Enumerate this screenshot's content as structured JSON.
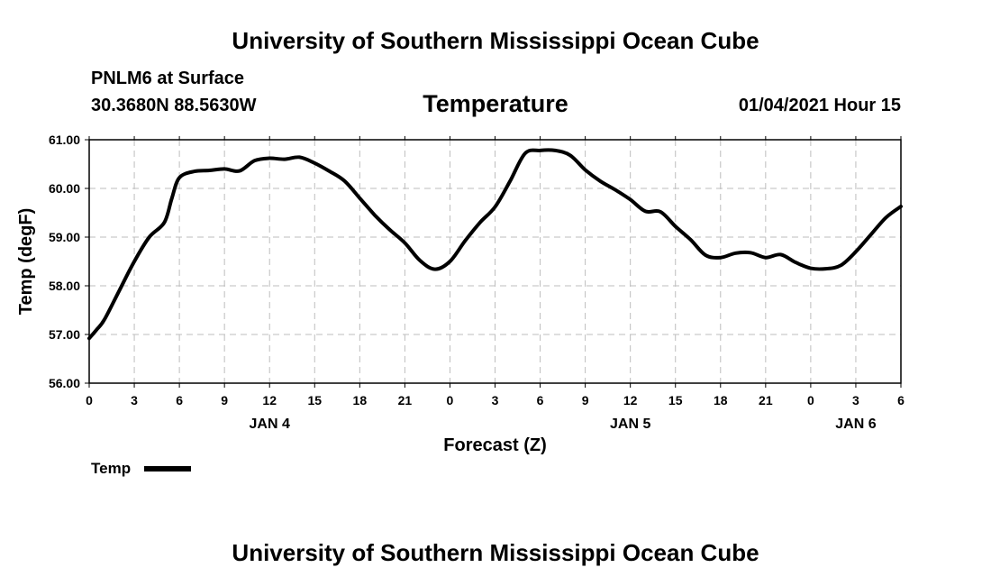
{
  "header": {
    "main_title": "University of Southern Mississippi Ocean Cube",
    "station": "PNLM6 at Surface",
    "coords": "30.3680N 88.5630W",
    "timestamp": "01/04/2021 Hour 15"
  },
  "footer": {
    "title": "University of Southern Mississippi Ocean Cube"
  },
  "chart_data": {
    "type": "line",
    "title": "Temperature",
    "xlabel": "Forecast (Z)",
    "ylabel": "Temp (degF)",
    "ylim": [
      56,
      61
    ],
    "xlim_hours": [
      0,
      54
    ],
    "grid": true,
    "y_ticks": [
      "56.00",
      "57.00",
      "58.00",
      "59.00",
      "60.00",
      "61.00"
    ],
    "y_tick_values": [
      56,
      57,
      58,
      59,
      60,
      61
    ],
    "x_ticks": [
      "0",
      "3",
      "6",
      "9",
      "12",
      "15",
      "18",
      "21",
      "0",
      "3",
      "6",
      "9",
      "12",
      "15",
      "18",
      "21",
      "0",
      "3",
      "6"
    ],
    "day_labels": [
      {
        "label": "JAN 4",
        "hour": 12
      },
      {
        "label": "JAN 5",
        "hour": 36
      },
      {
        "label": "JAN 6",
        "hour": 51
      }
    ],
    "legend": {
      "position": "bottom-left",
      "entries": [
        "Temp"
      ]
    },
    "series": [
      {
        "name": "Temp",
        "color": "#000000",
        "x": [
          0,
          0.5,
          1,
          2,
          3,
          4,
          5,
          5.5,
          6,
          7,
          8,
          9,
          10,
          11,
          12,
          13,
          14,
          15,
          16,
          17,
          18,
          19,
          20,
          21,
          22,
          23,
          24,
          25,
          26,
          27,
          28,
          29,
          30,
          31,
          32,
          33,
          34,
          35,
          36,
          37,
          38,
          39,
          40,
          41,
          42,
          43,
          44,
          45,
          46,
          47,
          48,
          49,
          50,
          51,
          52,
          53,
          54
        ],
        "y": [
          56.92,
          57.1,
          57.3,
          57.9,
          58.5,
          59.0,
          59.3,
          59.8,
          60.22,
          60.35,
          60.37,
          60.4,
          60.36,
          60.57,
          60.62,
          60.6,
          60.64,
          60.52,
          60.35,
          60.15,
          59.8,
          59.45,
          59.15,
          58.88,
          58.52,
          58.34,
          58.5,
          58.92,
          59.3,
          59.62,
          60.15,
          60.72,
          60.78,
          60.78,
          60.68,
          60.38,
          60.15,
          59.97,
          59.77,
          59.53,
          59.52,
          59.22,
          58.95,
          58.63,
          58.58,
          58.67,
          58.68,
          58.58,
          58.64,
          58.48,
          58.36,
          58.35,
          58.42,
          58.7,
          59.05,
          59.4,
          59.63
        ]
      }
    ]
  }
}
